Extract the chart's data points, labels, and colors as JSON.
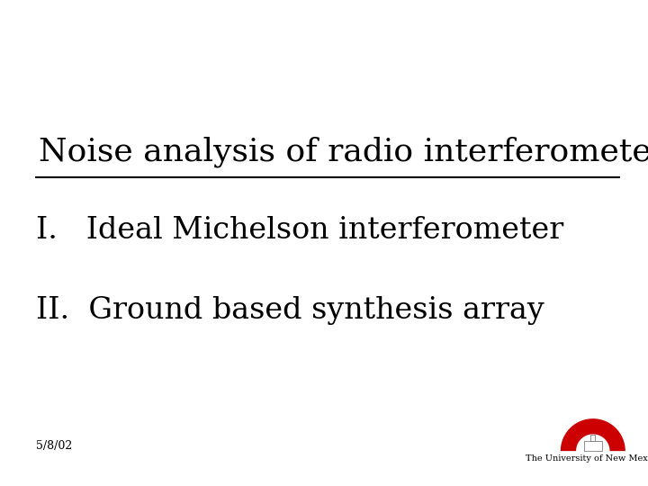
{
  "title": "Noise analysis of radio interferometers",
  "item1": "I.   Ideal Michelson interferometer",
  "item2": "II.  Ground based synthesis array",
  "date_label": "5/8/02",
  "bg_color": "#ffffff",
  "text_color": "#000000",
  "title_fontsize": 26,
  "item_fontsize": 24,
  "date_fontsize": 9,
  "univ_text": "The University of New Mexico",
  "univ_text_fontsize": 7
}
